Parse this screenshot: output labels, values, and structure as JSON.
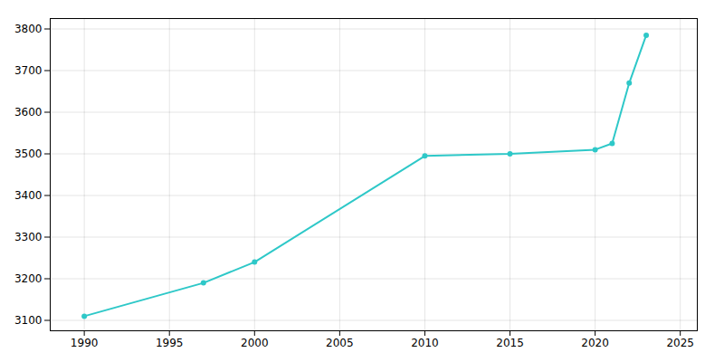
{
  "chart_data": {
    "type": "line",
    "x": [
      1990,
      1997,
      2000,
      2010,
      2015,
      2020,
      2021,
      2022,
      2023
    ],
    "values": [
      3110,
      3190,
      3240,
      3495,
      3500,
      3510,
      3525,
      3670,
      3785
    ],
    "color": "#2ec8c8",
    "marker": "circle",
    "xlim": [
      1988,
      2026
    ],
    "ylim": [
      3075,
      3825
    ],
    "xticks": [
      1990,
      1995,
      2000,
      2005,
      2010,
      2015,
      2020,
      2025
    ],
    "yticks": [
      3100,
      3200,
      3300,
      3400,
      3500,
      3600,
      3700,
      3800
    ],
    "grid": true
  }
}
